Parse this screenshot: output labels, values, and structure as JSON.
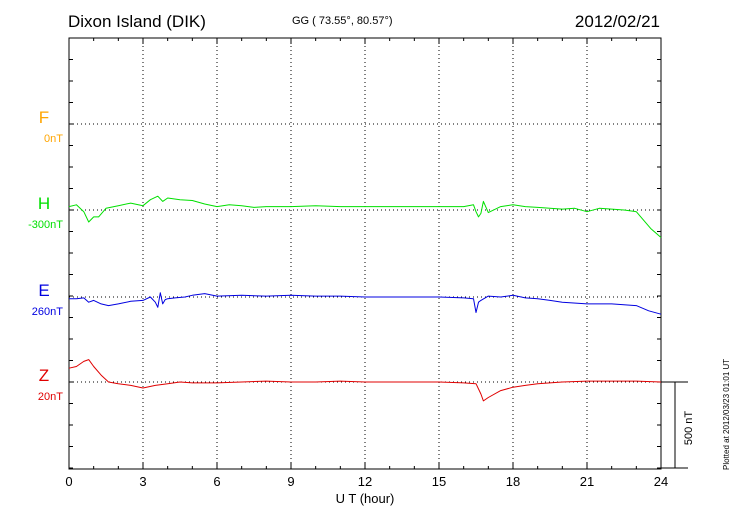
{
  "header": {
    "station": "Dixon Island (DIK)",
    "coords": "GG ( 73.55°,  80.57°)",
    "date": "2012/02/21"
  },
  "plotted_note": "Plotted at 2012/03/23 01:01 UT",
  "chart_data": {
    "type": "line",
    "title": "Dixon Island (DIK)",
    "xlabel": "U T (hour)",
    "xlim": [
      0,
      24
    ],
    "xticks": [
      "0",
      "3",
      "6",
      "9",
      "12",
      "15",
      "18",
      "21",
      "24"
    ],
    "grid": true,
    "scale_bar": "500 nT",
    "series": [
      {
        "name": "F",
        "baseline": "0nT",
        "color": "#ffa500",
        "values": []
      },
      {
        "name": "H",
        "baseline": "-300nT",
        "color": "#00e000",
        "x": [
          0,
          0.3,
          0.6,
          0.8,
          1.0,
          1.2,
          1.5,
          2.0,
          2.5,
          3.0,
          3.3,
          3.6,
          3.8,
          4.0,
          4.5,
          5.0,
          5.5,
          6.0,
          6.5,
          7.0,
          7.5,
          8.0,
          9.0,
          10.0,
          11.0,
          12.0,
          13.0,
          14.0,
          15.0,
          16.0,
          16.4,
          16.5,
          16.6,
          16.7,
          16.8,
          17.0,
          17.5,
          18.0,
          18.5,
          19.0,
          19.5,
          20.0,
          20.5,
          21.0,
          21.5,
          22.0,
          22.5,
          23.0,
          23.3,
          23.6,
          24.0
        ],
        "values": [
          20,
          30,
          -10,
          -70,
          -40,
          -40,
          10,
          25,
          40,
          25,
          60,
          80,
          50,
          70,
          60,
          55,
          35,
          20,
          30,
          25,
          15,
          20,
          20,
          25,
          20,
          20,
          20,
          20,
          20,
          20,
          30,
          -10,
          -40,
          -20,
          50,
          -15,
          20,
          30,
          20,
          15,
          10,
          5,
          10,
          -10,
          10,
          5,
          0,
          -10,
          -60,
          -110,
          -160
        ]
      },
      {
        "name": "E",
        "baseline": "260nT",
        "color": "#0000e0",
        "x": [
          0,
          0.3,
          0.6,
          0.8,
          1.0,
          1.3,
          1.6,
          2.0,
          2.5,
          3.0,
          3.3,
          3.5,
          3.6,
          3.7,
          3.8,
          3.9,
          4.0,
          4.3,
          4.7,
          5.0,
          5.5,
          6.0,
          7.0,
          8.0,
          9.0,
          10.0,
          11.0,
          12.0,
          13.0,
          14.0,
          15.0,
          16.0,
          16.4,
          16.5,
          16.6,
          16.7,
          17.0,
          17.5,
          18.0,
          18.5,
          19.0,
          19.5,
          20.0,
          21.0,
          22.0,
          23.0,
          23.5,
          24.0
        ],
        "values": [
          -10,
          -10,
          -5,
          -30,
          -20,
          -40,
          -50,
          -40,
          -25,
          -20,
          0,
          -30,
          -60,
          25,
          -40,
          -15,
          -10,
          -5,
          0,
          10,
          20,
          5,
          10,
          5,
          10,
          5,
          5,
          0,
          0,
          0,
          0,
          -5,
          -10,
          -90,
          -30,
          -20,
          5,
          0,
          10,
          -5,
          -10,
          -20,
          -30,
          -40,
          -40,
          -50,
          -80,
          -100
        ]
      },
      {
        "name": "Z",
        "baseline": "20nT",
        "color": "#e00000",
        "x": [
          0,
          0.3,
          0.6,
          0.8,
          1.0,
          1.3,
          1.6,
          2.0,
          2.5,
          3.0,
          3.5,
          4.0,
          4.5,
          5.0,
          6.0,
          7.0,
          8.0,
          9.0,
          10.0,
          11.0,
          12.0,
          13.0,
          14.0,
          15.0,
          16.0,
          16.5,
          16.7,
          16.8,
          17.0,
          17.5,
          18.0,
          18.5,
          19.0,
          20.0,
          21.0,
          22.0,
          23.0,
          24.0
        ],
        "values": [
          80,
          90,
          120,
          130,
          90,
          40,
          0,
          -10,
          -20,
          -35,
          -20,
          -10,
          0,
          -5,
          -5,
          0,
          5,
          0,
          0,
          5,
          0,
          0,
          0,
          0,
          -5,
          -10,
          -70,
          -110,
          -90,
          -50,
          -30,
          -20,
          -10,
          0,
          5,
          5,
          5,
          0
        ]
      }
    ]
  }
}
